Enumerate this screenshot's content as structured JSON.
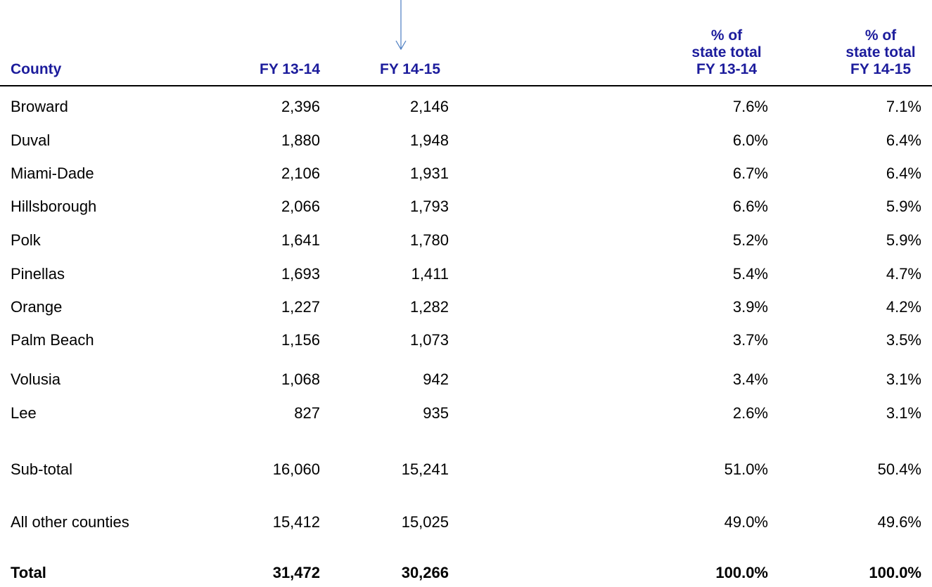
{
  "table": {
    "header": [
      "County",
      "FY 13-14",
      "FY 14-15",
      [
        "% of",
        "state total",
        "FY 13-14"
      ],
      [
        "% of",
        "state total",
        "FY 14-15"
      ]
    ],
    "rows": [
      [
        "Broward",
        "2,396",
        "2,146",
        "7.6%",
        "7.1%"
      ],
      [
        "Duval",
        "1,880",
        "1,948",
        "6.0%",
        "6.4%"
      ],
      [
        "Miami-Dade",
        "2,106",
        "1,931",
        "6.7%",
        "6.4%"
      ],
      [
        "Hillsborough",
        "2,066",
        "1,793",
        "6.6%",
        "5.9%"
      ],
      [
        "Polk",
        "1,641",
        "1,780",
        "5.2%",
        "5.9%"
      ],
      [
        "Pinellas",
        "1,693",
        "1,411",
        "5.4%",
        "4.7%"
      ],
      [
        "Orange",
        "1,227",
        "1,282",
        "3.9%",
        "4.2%"
      ],
      [
        "Palm Beach",
        "1,156",
        "1,073",
        "3.7%",
        "3.5%"
      ],
      [
        "Volusia",
        "1,068",
        "942",
        "3.4%",
        "3.1%"
      ],
      [
        "Lee",
        "827",
        "935",
        "2.6%",
        "3.1%"
      ],
      [
        "Sub-total",
        "16,060",
        "15,241",
        "51.0%",
        "50.4%"
      ],
      [
        "All other counties",
        "15,412",
        "15,025",
        "49.0%",
        "49.6%"
      ],
      [
        "Total",
        "31,472",
        "30,266",
        "100.0%",
        "100.0%"
      ]
    ]
  }
}
